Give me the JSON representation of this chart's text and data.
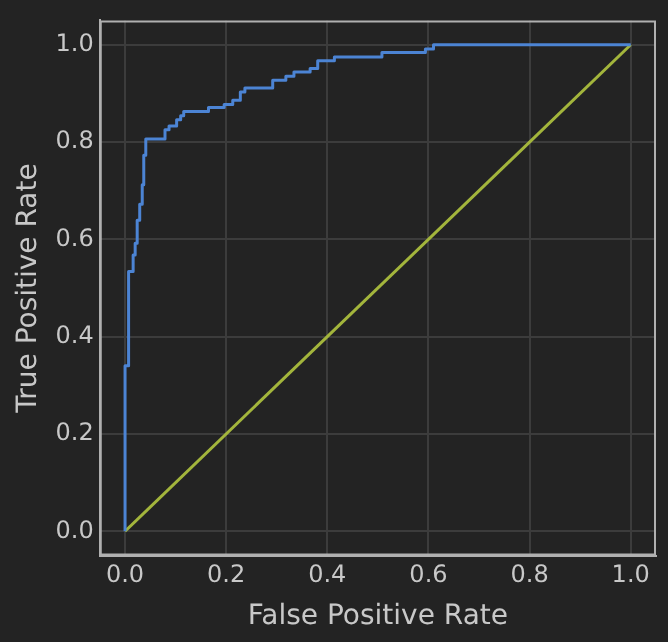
{
  "chart_data": {
    "type": "line",
    "xlabel": "False Positive Rate",
    "ylabel": "True Positive Rate",
    "xlim": [
      -0.05,
      1.05
    ],
    "ylim": [
      -0.05,
      1.05
    ],
    "xticks": [
      {
        "value": 0,
        "label": "0.0"
      },
      {
        "value": 0.2,
        "label": "0.2"
      },
      {
        "value": 0.4,
        "label": "0.4"
      },
      {
        "value": 0.6,
        "label": "0.6"
      },
      {
        "value": 0.8,
        "label": "0.8"
      },
      {
        "value": 1,
        "label": "1.0"
      }
    ],
    "yticks": [
      {
        "value": 0,
        "label": "0.0"
      },
      {
        "value": 0.2,
        "label": "0.2"
      },
      {
        "value": 0.4,
        "label": "0.4"
      },
      {
        "value": 0.6,
        "label": "0.6"
      },
      {
        "value": 0.8,
        "label": "0.8"
      },
      {
        "value": 1,
        "label": "1.0"
      }
    ],
    "grid": true,
    "legend": false,
    "marker": "none",
    "line_style": "solid",
    "series": [
      {
        "type": "step",
        "color": "#4c84d4",
        "x": [
          0,
          0,
          0.007,
          0.016,
          0.02,
          0.024,
          0.029,
          0.034,
          0.037,
          0.041,
          0.079,
          0.087,
          0.102,
          0.11,
          0.116,
          0.165,
          0.196,
          0.213,
          0.228,
          0.237,
          0.292,
          0.318,
          0.334,
          0.366,
          0.381,
          0.414,
          0.508,
          0.594,
          0.61,
          0.68,
          1
        ],
        "values": [
          0,
          0.27,
          0.34,
          0.534,
          0.568,
          0.592,
          0.639,
          0.672,
          0.712,
          0.773,
          0.806,
          0.825,
          0.833,
          0.846,
          0.854,
          0.863,
          0.871,
          0.877,
          0.886,
          0.903,
          0.911,
          0.927,
          0.935,
          0.944,
          0.951,
          0.967,
          0.975,
          0.984,
          0.991,
          1,
          1
        ]
      },
      {
        "color": "#a3b53c",
        "x": [
          0,
          1
        ],
        "values": [
          0,
          1
        ]
      }
    ]
  }
}
